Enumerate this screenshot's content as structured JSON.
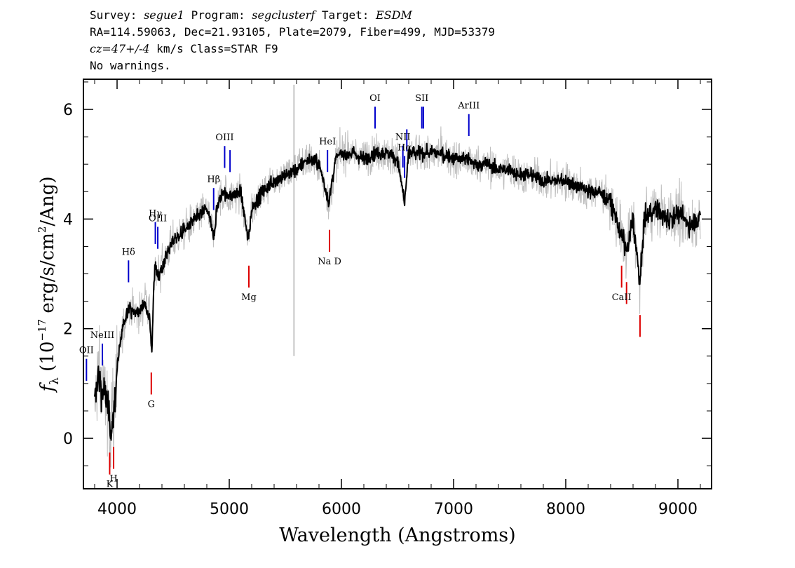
{
  "header": {
    "line1": {
      "survey_label": "Survey:",
      "survey": "segue1",
      "program_label": "Program:",
      "program": "segclusterf",
      "target_label": "Target:",
      "target": "ESDM"
    },
    "line2": "RA=114.59063, Dec=21.93105, Plate=2079, Fiber=499, MJD=53379",
    "line3": {
      "cz": "cz=47+/-4",
      "rest": " km/s Class=STAR F9"
    },
    "line4": "No warnings."
  },
  "chart_data": {
    "type": "line",
    "xlabel": "Wavelength (Angstroms)",
    "ylabel_main": "f",
    "ylabel_sub": "λ",
    "ylabel_rest": " (10",
    "ylabel_exp": "−17",
    "ylabel_rest2": " erg/s/cm",
    "ylabel_exp2": "2",
    "ylabel_rest3": "/Ang)",
    "xlim": [
      3700,
      9300
    ],
    "ylim": [
      -0.92,
      6.55
    ],
    "xticks": [
      4000,
      5000,
      6000,
      7000,
      8000,
      9000
    ],
    "yticks": [
      0,
      2,
      4,
      6
    ],
    "grid": false,
    "series": [
      {
        "role": "flux",
        "color": "#000000",
        "x": [
          3800,
          3830,
          3860,
          3900,
          3940,
          3970,
          4000,
          4050,
          4100,
          4150,
          4200,
          4250,
          4290,
          4310,
          4330,
          4340,
          4360,
          4400,
          4450,
          4500,
          4600,
          4700,
          4800,
          4860,
          4900,
          4950,
          5000,
          5100,
          5170,
          5200,
          5300,
          5400,
          5500,
          5600,
          5700,
          5800,
          5890,
          5950,
          6000,
          6100,
          6200,
          6300,
          6400,
          6500,
          6563,
          6600,
          6700,
          6800,
          6900,
          7000,
          7100,
          7200,
          7300,
          7400,
          7500,
          7600,
          7700,
          7800,
          7900,
          8000,
          8100,
          8200,
          8300,
          8400,
          8498,
          8542,
          8600,
          8662,
          8700,
          8800,
          8900,
          9000,
          9100,
          9200
        ],
        "y": [
          0.6,
          1.2,
          0.9,
          0.8,
          0.2,
          0.4,
          1.3,
          2.0,
          2.4,
          2.3,
          2.3,
          2.5,
          2.2,
          1.6,
          2.9,
          3.1,
          3.0,
          3.1,
          3.4,
          3.6,
          3.8,
          4.0,
          4.2,
          3.7,
          4.3,
          4.5,
          4.4,
          4.5,
          3.6,
          4.2,
          4.5,
          4.7,
          4.8,
          4.9,
          5.1,
          5.0,
          4.3,
          5.1,
          5.2,
          5.2,
          5.1,
          5.2,
          5.2,
          5.1,
          4.3,
          5.2,
          5.2,
          5.2,
          5.2,
          5.1,
          5.1,
          5.0,
          5.0,
          4.9,
          4.9,
          4.8,
          4.8,
          4.7,
          4.7,
          4.7,
          4.6,
          4.5,
          4.5,
          4.3,
          3.7,
          3.4,
          4.0,
          2.8,
          4.0,
          4.2,
          4.0,
          4.1,
          3.9,
          4.0
        ]
      },
      {
        "role": "flux-noise",
        "color": "#bdbdbd"
      }
    ],
    "line_labels": [
      {
        "label": "OII",
        "x": 3727,
        "color": "#0000cc",
        "side": "emission"
      },
      {
        "label": "NeIII",
        "x": 3869,
        "color": "#0000cc",
        "side": "emission"
      },
      {
        "label": "K",
        "x": 3934,
        "color": "#dd0000",
        "side": "absorption"
      },
      {
        "label": "H",
        "x": 3969,
        "color": "#dd0000",
        "side": "absorption"
      },
      {
        "label": "Hδ",
        "x": 4102,
        "color": "#0000cc",
        "side": "emission"
      },
      {
        "label": "G",
        "x": 4305,
        "color": "#dd0000",
        "side": "absorption"
      },
      {
        "label": "Hγ",
        "x": 4341,
        "color": "#0000cc",
        "side": "emission"
      },
      {
        "label": "OIII",
        "x": 4363,
        "color": "#0000cc",
        "side": "emission"
      },
      {
        "label": "Hβ",
        "x": 4861,
        "color": "#0000cc",
        "side": "emission"
      },
      {
        "label": "OIII",
        "x": 4959,
        "color": "#0000cc",
        "side": "emission"
      },
      {
        "label": "OIII",
        "x": 5007,
        "color": "#0000cc",
        "side": "emission"
      },
      {
        "label": "Mg",
        "x": 5175,
        "color": "#dd0000",
        "side": "absorption"
      },
      {
        "label": "HeI",
        "x": 5876,
        "color": "#0000cc",
        "side": "emission"
      },
      {
        "label": "Na D",
        "x": 5894,
        "color": "#dd0000",
        "side": "absorption"
      },
      {
        "label": "OI",
        "x": 6300,
        "color": "#0000cc",
        "side": "emission"
      },
      {
        "label": "NII",
        "x": 6548,
        "color": "#0000cc",
        "side": "emission"
      },
      {
        "label": "Hα",
        "x": 6563,
        "color": "#0000cc",
        "side": "emission"
      },
      {
        "label": "NII",
        "x": 6583,
        "color": "#0000cc",
        "side": "emission"
      },
      {
        "label": "SII",
        "x": 6717,
        "color": "#0000cc",
        "side": "emission"
      },
      {
        "label": "SII",
        "x": 6731,
        "color": "#0000cc",
        "side": "emission"
      },
      {
        "label": "ArIII",
        "x": 7136,
        "color": "#0000cc",
        "side": "emission"
      },
      {
        "label": "CaII",
        "x": 8498,
        "color": "#dd0000",
        "side": "absorption"
      },
      {
        "label": "CaII",
        "x": 8542,
        "color": "#dd0000",
        "side": "absorption"
      },
      {
        "label": "CaII",
        "x": 8662,
        "color": "#dd0000",
        "side": "absorption"
      }
    ],
    "sky_line": {
      "x": 5577,
      "color": "#b0b0b0"
    }
  }
}
